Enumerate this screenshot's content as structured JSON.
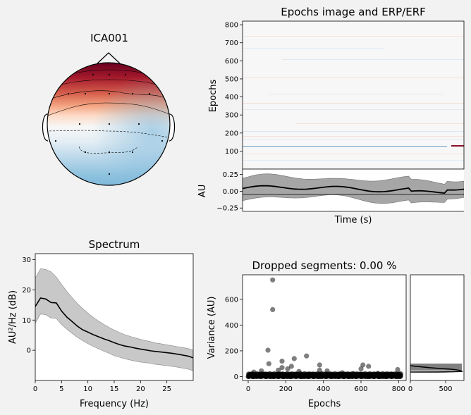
{
  "topomap": {
    "title": "ICA001",
    "colors": {
      "positive": "#67001f",
      "negative": "#4393c3",
      "neutral": "#f7f7f7"
    }
  },
  "epochs_image": {
    "title": "Epochs image and ERP/ERF",
    "ylabel": "Epochs",
    "yticks": [
      "800",
      "700",
      "600",
      "500",
      "400",
      "300",
      "200",
      "100"
    ],
    "ytick_values": [
      800,
      700,
      600,
      500,
      400,
      300,
      200,
      100
    ],
    "ylim": [
      0,
      820
    ]
  },
  "erp": {
    "ylabel": "AU",
    "xlabel": "Time (s)",
    "yticks": [
      "0.25",
      "0.00",
      "−0.25"
    ],
    "ytick_values": [
      0.25,
      0.0,
      -0.25
    ]
  },
  "chart_data": [
    {
      "type": "line",
      "title": "Spectrum",
      "xlabel": "Frequency (Hz)",
      "ylabel": "AU²/Hz (dB)",
      "xlim": [
        0,
        30
      ],
      "ylim": [
        -10,
        32
      ],
      "xticks": [
        "0",
        "5",
        "10",
        "15",
        "20",
        "25"
      ],
      "xtick_values": [
        0,
        5,
        10,
        15,
        20,
        25
      ],
      "yticks": [
        "30",
        "20",
        "10",
        "0"
      ],
      "ytick_values": [
        30,
        20,
        10,
        0
      ],
      "x": [
        0,
        1,
        2,
        3,
        4,
        5,
        6,
        7,
        8,
        9,
        10,
        11,
        12,
        13,
        14,
        15,
        16,
        17,
        18,
        19,
        20,
        21,
        22,
        23,
        24,
        25,
        26,
        27,
        28,
        29,
        30
      ],
      "mean": [
        14.5,
        17.3,
        17.0,
        15.8,
        15.7,
        13.0,
        11.0,
        9.5,
        8.0,
        6.8,
        6.0,
        5.2,
        4.5,
        3.8,
        3.2,
        2.5,
        1.9,
        1.4,
        1.1,
        0.7,
        0.4,
        0.1,
        -0.2,
        -0.4,
        -0.6,
        -0.8,
        -1.0,
        -1.3,
        -1.6,
        -1.9,
        -2.5
      ],
      "upper": [
        24.0,
        27.0,
        26.8,
        26.0,
        24.2,
        21.8,
        19.5,
        17.4,
        15.5,
        13.8,
        12.3,
        10.9,
        9.7,
        8.6,
        7.6,
        6.7,
        5.9,
        5.2,
        4.6,
        4.1,
        3.6,
        3.2,
        2.8,
        2.4,
        2.1,
        1.8,
        1.5,
        1.2,
        0.9,
        0.6,
        0.0
      ],
      "lower": [
        9.0,
        12.0,
        11.8,
        10.7,
        10.5,
        8.5,
        7.0,
        5.6,
        4.3,
        3.2,
        2.2,
        1.3,
        0.5,
        -0.3,
        -1.0,
        -1.8,
        -2.3,
        -2.8,
        -3.2,
        -3.6,
        -3.9,
        -4.1,
        -4.4,
        -4.7,
        -4.9,
        -5.1,
        -5.3,
        -5.6,
        -5.9,
        -6.2,
        -6.8
      ],
      "colors": {
        "line": "#000000",
        "band": "#c8c8c8"
      }
    },
    {
      "type": "scatter",
      "title": "Dropped segments: 0.00 %",
      "xlabel": "Epochs",
      "ylabel": "Variance (AU)",
      "xlim": [
        -30,
        840
      ],
      "ylim": [
        -30,
        790
      ],
      "xticks": [
        "0",
        "200",
        "400",
        "600",
        "800"
      ],
      "xtick_values": [
        0,
        200,
        400,
        600,
        800
      ],
      "yticks": [
        "0",
        "200",
        "400",
        "600"
      ],
      "ytick_values": [
        0,
        200,
        400,
        600
      ],
      "outliers": [
        {
          "x": 130,
          "y": 750
        },
        {
          "x": 130,
          "y": 520
        },
        {
          "x": 105,
          "y": 205
        },
        {
          "x": 310,
          "y": 160
        },
        {
          "x": 245,
          "y": 140
        },
        {
          "x": 180,
          "y": 120
        },
        {
          "x": 110,
          "y": 100
        },
        {
          "x": 380,
          "y": 90
        },
        {
          "x": 610,
          "y": 90
        },
        {
          "x": 230,
          "y": 80
        },
        {
          "x": 180,
          "y": 70
        },
        {
          "x": 640,
          "y": 80
        },
        {
          "x": 210,
          "y": 60
        },
        {
          "x": 600,
          "y": 60
        },
        {
          "x": 160,
          "y": 50
        },
        {
          "x": 70,
          "y": 45
        },
        {
          "x": 420,
          "y": 45
        },
        {
          "x": 795,
          "y": 55
        },
        {
          "x": 380,
          "y": 50
        },
        {
          "x": 270,
          "y": 40
        },
        {
          "x": 30,
          "y": 35
        },
        {
          "x": 500,
          "y": 30
        },
        {
          "x": 690,
          "y": 25
        },
        {
          "x": 560,
          "y": 22
        }
      ],
      "baseline": {
        "count": 820,
        "x_range": [
          0,
          812
        ],
        "y_range": [
          0,
          22
        ]
      },
      "colors": {
        "marker": "#000000"
      }
    },
    {
      "type": "histogram",
      "xticks": [
        "0",
        "500"
      ],
      "xtick_values": [
        0,
        500
      ],
      "xlim": [
        0,
        760
      ],
      "colors": {
        "bar": "#808080",
        "line": "#000000"
      }
    }
  ]
}
